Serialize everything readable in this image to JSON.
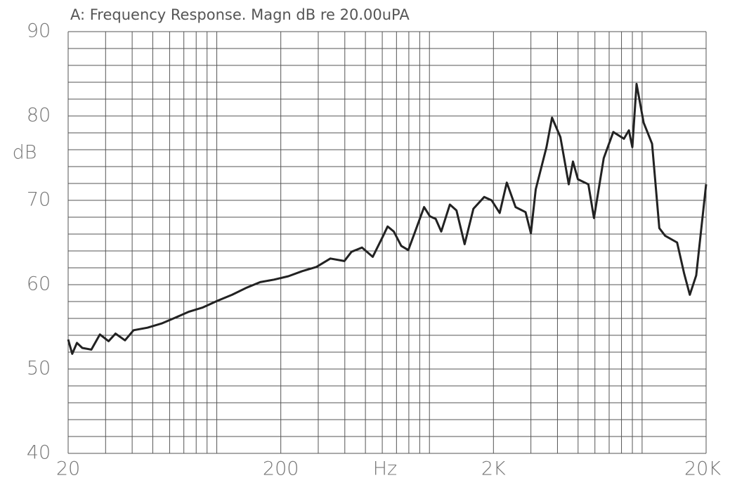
{
  "chart_data": {
    "type": "line",
    "title": "A: Frequency Response. Magn dB re 20.00uPA",
    "ylabel": "dB",
    "xlabel": "Hz",
    "log_x": true,
    "grid": true,
    "color": "#222222",
    "xlim": [
      20,
      20000
    ],
    "ylim": [
      40,
      90
    ],
    "xticks": [
      20,
      200,
      {
        "value": 2000,
        "label": "2K"
      },
      {
        "value": 20000,
        "label": "20K"
      }
    ],
    "yticks": [
      40,
      50,
      60,
      70,
      80,
      90
    ],
    "xgrid": [
      30,
      40,
      50,
      60,
      70,
      80,
      90,
      100,
      300,
      400,
      500,
      600,
      700,
      800,
      900,
      1000,
      3000,
      4000,
      5000,
      6000,
      7000,
      8000,
      9000,
      10000
    ],
    "ygrid": [
      42,
      44,
      46,
      48,
      52,
      54,
      56,
      58,
      62,
      64,
      66,
      68,
      72,
      74,
      76,
      78,
      82,
      84,
      86,
      88
    ],
    "x": [
      20,
      20.9,
      22,
      23.3,
      25.7,
      28.2,
      31,
      33.4,
      37,
      40.6,
      47.2,
      55,
      64,
      74,
      86,
      101,
      118,
      137,
      160,
      186,
      217,
      252,
      294,
      342,
      398,
      430,
      482,
      541,
      606,
      636,
      680,
      737,
      795,
      857,
      944,
      1005,
      1070,
      1136,
      1248,
      1340,
      1464,
      1610,
      1810,
      1960,
      2140,
      2310,
      2540,
      2830,
      3000,
      3160,
      3550,
      3770,
      4130,
      4520,
      4730,
      4990,
      5590,
      5940,
      6600,
      7320,
      8210,
      8670,
      9000,
      9420,
      10170,
      11140,
      12050,
      12840,
      14610,
      15770,
      16770,
      17960,
      20000
    ],
    "values": [
      53.5,
      51.8,
      53.1,
      52.5,
      52.3,
      54.1,
      53.3,
      54.2,
      53.4,
      54.6,
      54.9,
      55.4,
      56.1,
      56.8,
      57.3,
      58.1,
      58.8,
      59.6,
      60.3,
      60.6,
      61,
      61.6,
      62.1,
      63.1,
      62.8,
      63.9,
      64.4,
      63.3,
      65.8,
      66.9,
      66.3,
      64.6,
      64.1,
      66.3,
      69.2,
      68.1,
      67.8,
      66.3,
      69.5,
      68.8,
      64.8,
      69,
      70.4,
      70,
      68.5,
      72.1,
      69.2,
      68.6,
      66.1,
      71.3,
      76.3,
      79.8,
      77.5,
      71.9,
      74.6,
      72.5,
      71.9,
      67.9,
      75,
      78.1,
      77.3,
      78.3,
      76.3,
      83.8,
      79.2,
      76.7,
      66.7,
      65.8,
      65,
      61.3,
      58.8,
      61.1,
      71.9
    ]
  }
}
